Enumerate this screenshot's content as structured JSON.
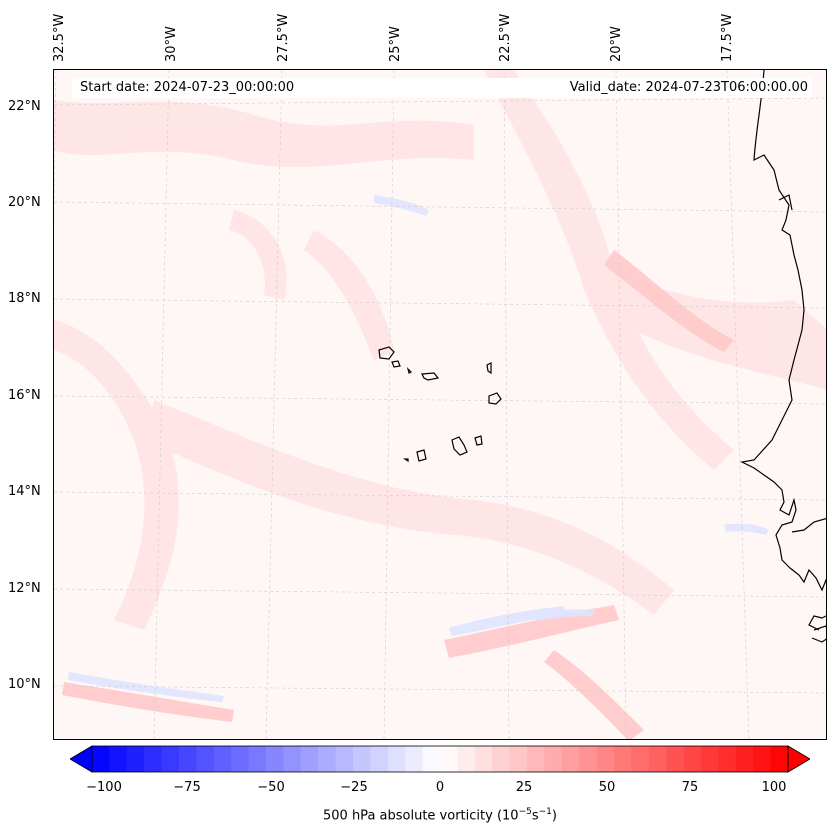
{
  "longitude_labels": [
    {
      "label": "32.5°W",
      "lon": -32.5
    },
    {
      "label": "30°W",
      "lon": -30
    },
    {
      "label": "27.5°W",
      "lon": -27.5
    },
    {
      "label": "25°W",
      "lon": -25
    },
    {
      "label": "22.5°W",
      "lon": -22.5
    },
    {
      "label": "20°W",
      "lon": -20
    },
    {
      "label": "17.5°W",
      "lon": -17.5
    }
  ],
  "latitude_labels": [
    {
      "label": "22°N",
      "lat": 22
    },
    {
      "label": "20°N",
      "lat": 20
    },
    {
      "label": "18°N",
      "lat": 18
    },
    {
      "label": "16°N",
      "lat": 16
    },
    {
      "label": "14°N",
      "lat": 14
    },
    {
      "label": "12°N",
      "lat": 12
    },
    {
      "label": "10°N",
      "lat": 10
    }
  ],
  "header": {
    "start_date": "Start date: 2024-07-23_00:00:00",
    "valid_date": "Valid_date: 2024-07-23T06:00:00.00"
  },
  "colorbar": {
    "min": -100,
    "max": 100,
    "ticks": [
      "−100",
      "−75",
      "−50",
      "−25",
      "0",
      "25",
      "50",
      "75",
      "100"
    ],
    "tick_values": [
      -100,
      -75,
      -50,
      -25,
      0,
      25,
      50,
      75,
      100
    ],
    "title_prefix": "500 hPa absolute vorticity (10",
    "title_exp1": "−5",
    "title_mid": "s",
    "title_exp2": "−1",
    "title_suffix": ")",
    "low_color": "#0000ff",
    "mid_color": "#ffffff",
    "high_color": "#ff0000"
  },
  "map": {
    "background_color": "#fff6f6",
    "coastline_color": "#000000",
    "gridline_color": "#bbbbbb"
  }
}
